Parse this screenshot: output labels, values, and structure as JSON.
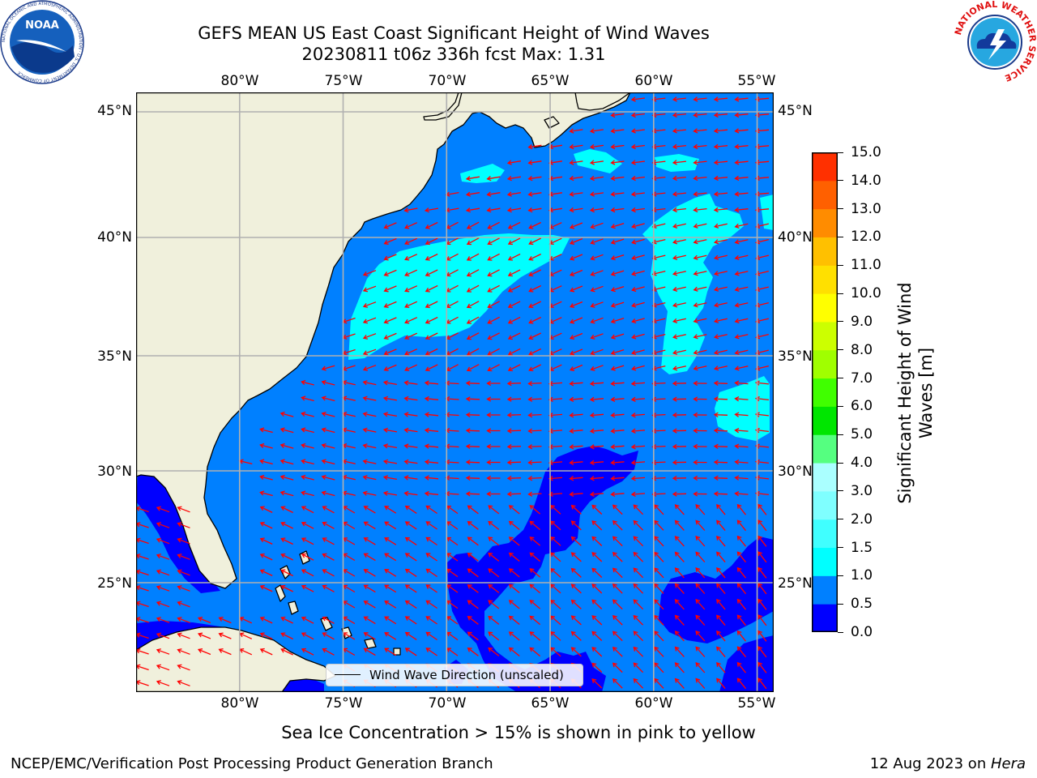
{
  "header": {
    "title_line1": "GEFS MEAN US East Coast Significant Height of Wind Waves",
    "title_line2": "20230811 t06z 336h fcst   Max: 1.31"
  },
  "logos": {
    "left": {
      "icon": "noaa-logo",
      "text": "NOAA",
      "ring_text": "NATIONAL OCEANIC AND ATMOSPHERIC ADMINISTRATION · U.S. DEPARTMENT OF COMMERCE"
    },
    "right": {
      "icon": "nws-logo",
      "ring_text": "NATIONAL WEATHER SERVICE"
    }
  },
  "map": {
    "lon_ticks": [
      "80°W",
      "75°W",
      "70°W",
      "65°W",
      "60°W",
      "55°W"
    ],
    "lat_ticks": [
      "45°N",
      "40°N",
      "35°N",
      "30°N",
      "25°N"
    ],
    "lon_values": [
      -80,
      -75,
      -70,
      -65,
      -60,
      -55
    ],
    "lat_values": [
      45,
      40,
      35,
      30,
      25
    ],
    "extent": {
      "lon_min": -85,
      "lon_max": -54.2,
      "lat_min": 20.4,
      "lat_max": 45.8
    },
    "land_color": "#f0f0dc",
    "grid_on": true,
    "arrow_color": "#ff0000",
    "legend": {
      "label": "Wind Wave Direction (unscaled)",
      "placement": "lower-center"
    }
  },
  "colorbar": {
    "label": "Significant Height of Wind Waves [m]",
    "ticks": [
      "0.0",
      "0.5",
      "1.0",
      "1.5",
      "2.0",
      "3.0",
      "4.0",
      "5.0",
      "6.0",
      "7.0",
      "8.0",
      "9.0",
      "10.0",
      "11.0",
      "12.0",
      "13.0",
      "14.0",
      "15.0"
    ],
    "colors": [
      "#0000ff",
      "#0080ff",
      "#00ffff",
      "#40ffff",
      "#7fffff",
      "#aaffff",
      "#55ff80",
      "#00e600",
      "#40ff00",
      "#a0ff00",
      "#ccff00",
      "#ffff00",
      "#ffe000",
      "#ffc000",
      "#ff8c00",
      "#ff6000",
      "#ff3000",
      "#ff0000"
    ]
  },
  "chart_data": {
    "type": "heatmap",
    "title": "GEFS MEAN US East Coast Significant Height of Wind Waves",
    "subtitle": "20230811 t06z 336h fcst   Max: 1.31",
    "variable": "Significant Height of Wind Waves [m]",
    "max_value": 1.31,
    "field_summary": [
      {
        "range": "0.0-0.5",
        "regions": [
          "south-central Atlantic 60-70°W 20-31°N",
          "east 55-58°W 22-27°N",
          "Gulf of Mexico / Cuba coast"
        ]
      },
      {
        "range": "0.5-1.0",
        "regions": [
          "most of domain"
        ]
      },
      {
        "range": "1.0-1.5",
        "regions": [
          "off Mid-Atlantic coast 63-75°W 35-40°N",
          "central 57-60°W 34-41°N",
          "east 55-58°W 31-33°N",
          "Gulf of Maine 63-67°W 42-43.5°N"
        ]
      }
    ]
  },
  "bottom": {
    "note": "Sea Ice Concentration > 15% is shown in pink to yellow",
    "left": "NCEP/EMC/Verification Post Processing Product Generation Branch",
    "right_date": "12 Aug 2023 on ",
    "right_host": "Hera"
  }
}
